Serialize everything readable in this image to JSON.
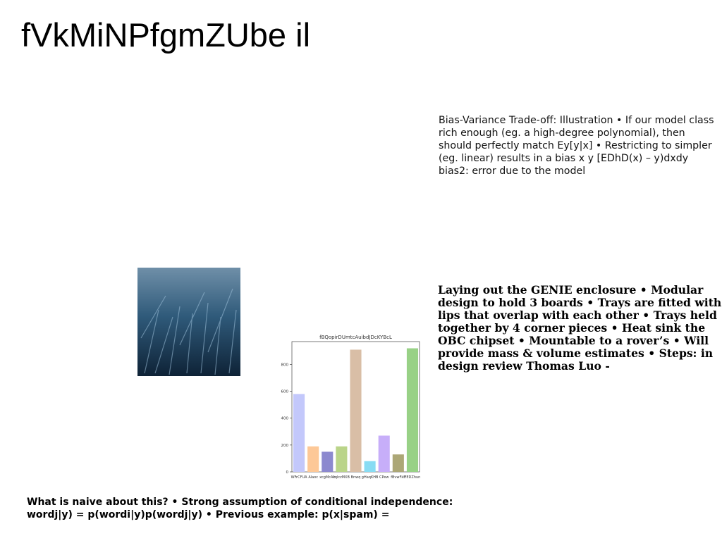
{
  "header": {
    "title": "fVkMiNPfgmZUbe il"
  },
  "text_blocks": [
    "Bias-Variance Trade-off: Illustration • If our model class rich enough (eg. a high-degree polynomial), then should perfectly match Ey[y|x] • Restricting to simpler (eg. linear) results in a bias  x  y [EDhD(x) – y)dxdy    bias2: error due to the model",
    "Laying out the GENIE enclosure • Modular design to hold 3 boards • Trays are fitted with lips that overlap with each other • Trays held together by 4 corner pieces • Heat sink the OBC chipset • Mountable to a rover’s • Will provide mass & volume estimates • Steps: in design review Thomas Luo -",
    "What is naive about this? • Strong assumption of conditional independence: wordj|y) = p(wordi|y)p(wordj|y) • Previous example: p(x|spam) ="
  ],
  "chart_data": {
    "type": "bar",
    "title": "fBQopirDUmtcAuibdJDcKYBcL",
    "categories": [
      "WFrCFUA",
      "Alaoc",
      "xcgMcAk",
      "tqlczMXB",
      "Bnwq",
      "gHaqKHB",
      "CPew",
      "fBvwFkE",
      "FEDZhun"
    ],
    "values": [
      580,
      190,
      150,
      190,
      910,
      80,
      270,
      130,
      920
    ],
    "colors": [
      "#c3c8fb",
      "#fdc897",
      "#8c89cf",
      "#bad489",
      "#d9bea6",
      "#88dcf3",
      "#c7aef9",
      "#aca776",
      "#98d186"
    ],
    "ylim": [
      0,
      970
    ],
    "yticks": [
      0,
      200,
      400,
      600,
      800
    ]
  }
}
